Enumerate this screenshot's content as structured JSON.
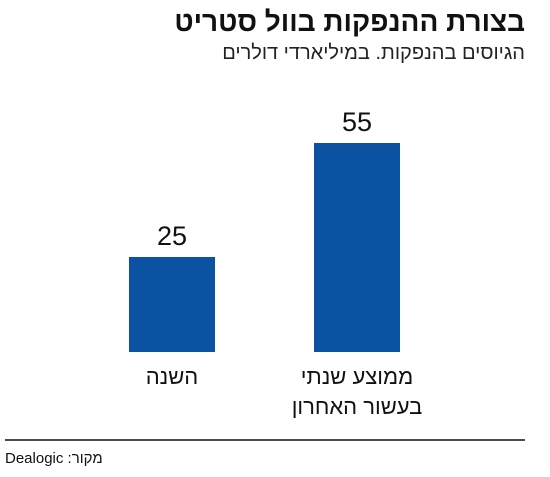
{
  "chart_data": {
    "type": "bar",
    "title": "בצורת ההנפקות בוול סטריט",
    "subtitle": "הגיוסים בהנפקות. במיליארדי דולרים",
    "categories": [
      "ממוצע שנתי בעשור האחרון",
      "השנה"
    ],
    "values": [
      55,
      25
    ],
    "color": "#0b52a3",
    "source": "מקור: Dealogic"
  }
}
